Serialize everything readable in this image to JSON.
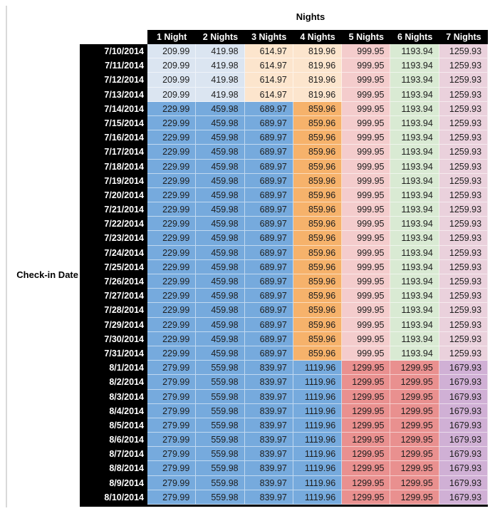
{
  "header": {
    "title": "Nights",
    "row_axis_label": "Check-in Date"
  },
  "table": {
    "columns": [
      "1 Night",
      "2 Nights",
      "3 Nights",
      "4 Nights",
      "5 Nights",
      "6 Nights",
      "7 Nights"
    ],
    "rows": [
      {
        "date": "7/10/2014",
        "band": "early",
        "values": [
          "209.99",
          "419.98",
          "614.97",
          "819.96",
          "999.95",
          "1193.94",
          "1259.93"
        ]
      },
      {
        "date": "7/11/2014",
        "band": "early",
        "values": [
          "209.99",
          "419.98",
          "614.97",
          "819.96",
          "999.95",
          "1193.94",
          "1259.93"
        ]
      },
      {
        "date": "7/12/2014",
        "band": "early",
        "values": [
          "209.99",
          "419.98",
          "614.97",
          "819.96",
          "999.95",
          "1193.94",
          "1259.93"
        ]
      },
      {
        "date": "7/13/2014",
        "band": "early",
        "values": [
          "209.99",
          "419.98",
          "614.97",
          "819.96",
          "999.95",
          "1193.94",
          "1259.93"
        ]
      },
      {
        "date": "7/14/2014",
        "band": "mid",
        "values": [
          "229.99",
          "459.98",
          "689.97",
          "859.96",
          "999.95",
          "1193.94",
          "1259.93"
        ]
      },
      {
        "date": "7/15/2014",
        "band": "mid",
        "values": [
          "229.99",
          "459.98",
          "689.97",
          "859.96",
          "999.95",
          "1193.94",
          "1259.93"
        ]
      },
      {
        "date": "7/16/2014",
        "band": "mid",
        "values": [
          "229.99",
          "459.98",
          "689.97",
          "859.96",
          "999.95",
          "1193.94",
          "1259.93"
        ]
      },
      {
        "date": "7/17/2014",
        "band": "mid",
        "values": [
          "229.99",
          "459.98",
          "689.97",
          "859.96",
          "999.95",
          "1193.94",
          "1259.93"
        ]
      },
      {
        "date": "7/18/2014",
        "band": "mid",
        "values": [
          "229.99",
          "459.98",
          "689.97",
          "859.96",
          "999.95",
          "1193.94",
          "1259.93"
        ]
      },
      {
        "date": "7/19/2014",
        "band": "mid",
        "values": [
          "229.99",
          "459.98",
          "689.97",
          "859.96",
          "999.95",
          "1193.94",
          "1259.93"
        ]
      },
      {
        "date": "7/20/2014",
        "band": "mid",
        "values": [
          "229.99",
          "459.98",
          "689.97",
          "859.96",
          "999.95",
          "1193.94",
          "1259.93"
        ]
      },
      {
        "date": "7/21/2014",
        "band": "mid",
        "values": [
          "229.99",
          "459.98",
          "689.97",
          "859.96",
          "999.95",
          "1193.94",
          "1259.93"
        ]
      },
      {
        "date": "7/22/2014",
        "band": "mid",
        "values": [
          "229.99",
          "459.98",
          "689.97",
          "859.96",
          "999.95",
          "1193.94",
          "1259.93"
        ]
      },
      {
        "date": "7/23/2014",
        "band": "mid",
        "values": [
          "229.99",
          "459.98",
          "689.97",
          "859.96",
          "999.95",
          "1193.94",
          "1259.93"
        ]
      },
      {
        "date": "7/24/2014",
        "band": "mid",
        "values": [
          "229.99",
          "459.98",
          "689.97",
          "859.96",
          "999.95",
          "1193.94",
          "1259.93"
        ]
      },
      {
        "date": "7/25/2014",
        "band": "mid",
        "values": [
          "229.99",
          "459.98",
          "689.97",
          "859.96",
          "999.95",
          "1193.94",
          "1259.93"
        ]
      },
      {
        "date": "7/26/2014",
        "band": "mid",
        "values": [
          "229.99",
          "459.98",
          "689.97",
          "859.96",
          "999.95",
          "1193.94",
          "1259.93"
        ]
      },
      {
        "date": "7/27/2014",
        "band": "mid",
        "values": [
          "229.99",
          "459.98",
          "689.97",
          "859.96",
          "999.95",
          "1193.94",
          "1259.93"
        ]
      },
      {
        "date": "7/28/2014",
        "band": "mid",
        "values": [
          "229.99",
          "459.98",
          "689.97",
          "859.96",
          "999.95",
          "1193.94",
          "1259.93"
        ]
      },
      {
        "date": "7/29/2014",
        "band": "mid",
        "values": [
          "229.99",
          "459.98",
          "689.97",
          "859.96",
          "999.95",
          "1193.94",
          "1259.93"
        ]
      },
      {
        "date": "7/30/2014",
        "band": "mid",
        "values": [
          "229.99",
          "459.98",
          "689.97",
          "859.96",
          "999.95",
          "1193.94",
          "1259.93"
        ]
      },
      {
        "date": "7/31/2014",
        "band": "mid",
        "values": [
          "229.99",
          "459.98",
          "689.97",
          "859.96",
          "999.95",
          "1193.94",
          "1259.93"
        ]
      },
      {
        "date": "8/1/2014",
        "band": "late",
        "values": [
          "279.99",
          "559.98",
          "839.97",
          "1119.96",
          "1299.95",
          "1299.95",
          "1679.93"
        ]
      },
      {
        "date": "8/2/2014",
        "band": "late",
        "values": [
          "279.99",
          "559.98",
          "839.97",
          "1119.96",
          "1299.95",
          "1299.95",
          "1679.93"
        ]
      },
      {
        "date": "8/3/2014",
        "band": "late",
        "values": [
          "279.99",
          "559.98",
          "839.97",
          "1119.96",
          "1299.95",
          "1299.95",
          "1679.93"
        ]
      },
      {
        "date": "8/4/2014",
        "band": "late",
        "values": [
          "279.99",
          "559.98",
          "839.97",
          "1119.96",
          "1299.95",
          "1299.95",
          "1679.93"
        ]
      },
      {
        "date": "8/5/2014",
        "band": "late",
        "values": [
          "279.99",
          "559.98",
          "839.97",
          "1119.96",
          "1299.95",
          "1299.95",
          "1679.93"
        ]
      },
      {
        "date": "8/6/2014",
        "band": "late",
        "values": [
          "279.99",
          "559.98",
          "839.97",
          "1119.96",
          "1299.95",
          "1299.95",
          "1679.93"
        ]
      },
      {
        "date": "8/7/2014",
        "band": "late",
        "values": [
          "279.99",
          "559.98",
          "839.97",
          "1119.96",
          "1299.95",
          "1299.95",
          "1679.93"
        ]
      },
      {
        "date": "8/8/2014",
        "band": "late",
        "values": [
          "279.99",
          "559.98",
          "839.97",
          "1119.96",
          "1299.95",
          "1299.95",
          "1679.93"
        ]
      },
      {
        "date": "8/9/2014",
        "band": "late",
        "values": [
          "279.99",
          "559.98",
          "839.97",
          "1119.96",
          "1299.95",
          "1299.95",
          "1679.93"
        ]
      },
      {
        "date": "8/10/2014",
        "band": "late",
        "values": [
          "279.99",
          "559.98",
          "839.97",
          "1119.96",
          "1299.95",
          "1299.95",
          "1679.93"
        ]
      }
    ]
  },
  "bands": {
    "early": [
      "paleBlue",
      "paleBlue",
      "paleOrange",
      "paleOrange",
      "paleRed",
      "paleGreen",
      "paleMagenta"
    ],
    "mid": [
      "midBlue",
      "midBlue",
      "midBlue",
      "midOrange",
      "paleRed",
      "paleGreen",
      "paleMagenta"
    ],
    "late": [
      "midBlue",
      "midBlue",
      "midBlue",
      "midBlue",
      "midRed",
      "midRed",
      "palePurple"
    ]
  },
  "palette": {
    "paleBlue": "#dbe5f1",
    "paleOrange": "#fce5cd",
    "paleRed": "#f4cccc",
    "paleGreen": "#d9ead3",
    "paleMagenta": "#ead1dc",
    "midBlue": "#76aadd",
    "midOrange": "#f6b26b",
    "midRed": "#e9908f",
    "palePurple": "#d0b0d5",
    "headerBg": "#000000",
    "headerText": "#ffffff",
    "cellText": "#1d1d1d",
    "leftRule": "#d9d9d9"
  }
}
